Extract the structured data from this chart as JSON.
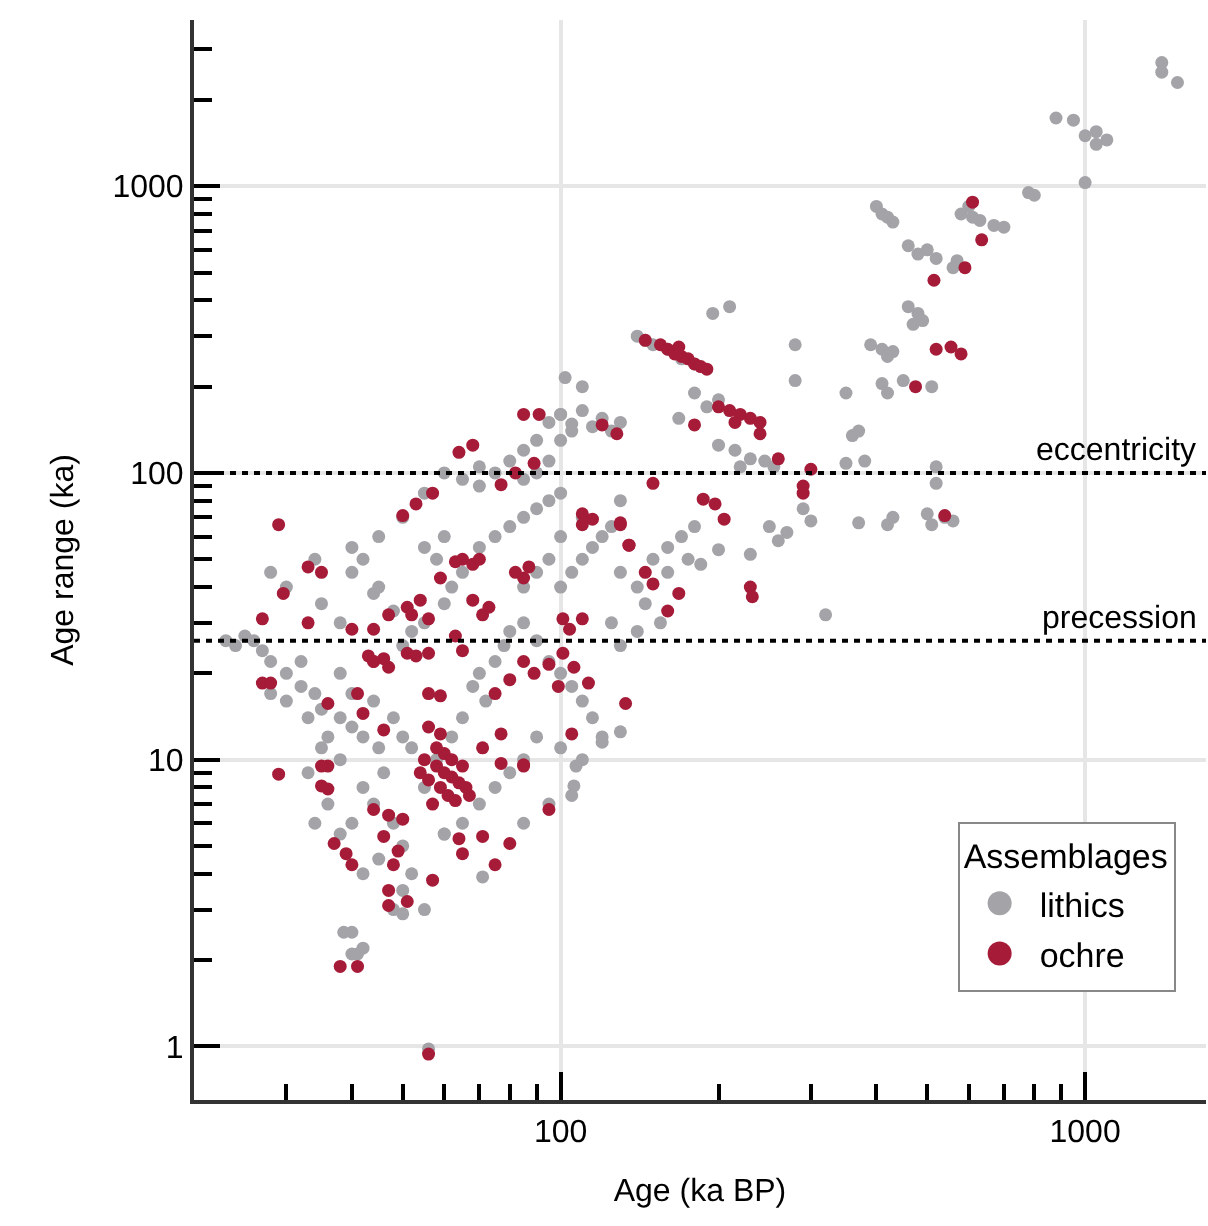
{
  "chart_data": {
    "type": "scatter",
    "xlabel": "Age (ka BP)",
    "ylabel": "Age range (ka)",
    "log": "xy",
    "grid": true,
    "marker": "circle",
    "legend": "bottom right",
    "legend_title": "Assemblages",
    "xlim": [
      20,
      1700
    ],
    "ylim": [
      0.65,
      3800
    ],
    "xticks": [
      {
        "value": 30,
        "label": null
      },
      {
        "value": 40,
        "label": null
      },
      {
        "value": 50,
        "label": null
      },
      {
        "value": 60,
        "label": null
      },
      {
        "value": 70,
        "label": null
      },
      {
        "value": 80,
        "label": null
      },
      {
        "value": 90,
        "label": null
      },
      100,
      {
        "value": 200,
        "label": null
      },
      {
        "value": 300,
        "label": null
      },
      {
        "value": 400,
        "label": null
      },
      {
        "value": 500,
        "label": null
      },
      {
        "value": 600,
        "label": null
      },
      {
        "value": 700,
        "label": null
      },
      {
        "value": 800,
        "label": null
      },
      {
        "value": 900,
        "label": null
      },
      1000
    ],
    "yticks": [
      1,
      {
        "value": 2,
        "label": null
      },
      {
        "value": 3,
        "label": null
      },
      {
        "value": 4,
        "label": null
      },
      {
        "value": 5,
        "label": null
      },
      {
        "value": 6,
        "label": null
      },
      {
        "value": 7,
        "label": null
      },
      {
        "value": 8,
        "label": null
      },
      {
        "value": 9,
        "label": null
      },
      10,
      {
        "value": 20,
        "label": null
      },
      {
        "value": 30,
        "label": null
      },
      {
        "value": 40,
        "label": null
      },
      {
        "value": 50,
        "label": null
      },
      {
        "value": 60,
        "label": null
      },
      {
        "value": 70,
        "label": null
      },
      {
        "value": 80,
        "label": null
      },
      {
        "value": 90,
        "label": null
      },
      100,
      {
        "value": 200,
        "label": null
      },
      {
        "value": 300,
        "label": null
      },
      {
        "value": 400,
        "label": null
      },
      {
        "value": 500,
        "label": null
      },
      {
        "value": 600,
        "label": null
      },
      {
        "value": 700,
        "label": null
      },
      {
        "value": 800,
        "label": null
      },
      {
        "value": 900,
        "label": null
      },
      1000,
      {
        "value": 2000,
        "label": null
      },
      {
        "value": 3000,
        "label": null
      }
    ],
    "ref_lines": [
      {
        "axis": "y",
        "value": 100,
        "label": "eccentricity",
        "line_style": "dotted",
        "color": "#000000"
      },
      {
        "axis": "y",
        "value": 26,
        "label": "precession",
        "line_style": "dotted",
        "color": "#000000"
      }
    ],
    "series": [
      {
        "name": "lithics",
        "color": "#a3a3a8",
        "x": [
          1400,
          1400,
          1500,
          880,
          950,
          1050,
          1000,
          1100,
          1050,
          1000,
          780,
          800,
          400,
          410,
          420,
          430,
          580,
          610,
          630,
          600,
          670,
          700,
          460,
          500,
          480,
          520,
          570,
          560,
          460,
          480,
          490,
          470,
          390,
          410,
          430,
          420,
          410,
          420,
          450,
          510,
          280,
          195,
          210,
          280,
          350,
          360,
          370,
          380,
          350,
          520,
          520,
          500,
          540,
          560,
          510,
          430,
          420,
          370,
          250,
          270,
          260,
          320,
          230,
          200,
          290,
          300,
          200,
          215,
          230,
          245,
          255,
          220,
          180,
          200,
          190,
          140,
          145,
          150,
          160,
          170,
          180,
          168,
          100,
          110,
          120,
          130,
          105,
          115,
          125,
          102,
          110,
          23,
          24,
          25,
          26,
          27,
          28,
          30,
          32,
          34,
          30,
          35,
          38,
          40,
          42,
          45,
          36,
          33,
          28,
          32,
          38,
          40,
          44,
          48,
          50,
          52,
          46,
          42,
          44,
          40,
          48,
          50,
          52,
          55,
          50,
          45,
          40,
          42,
          60,
          55,
          58,
          62,
          65,
          68,
          70,
          72,
          75,
          78,
          80,
          85,
          90,
          95,
          100,
          105,
          110,
          115,
          120,
          100,
          90,
          85,
          80,
          75,
          70,
          65,
          60,
          85,
          95,
          110,
          120,
          130,
          50,
          55,
          60,
          62,
          65,
          58,
          55,
          60,
          70,
          75,
          80,
          85,
          90,
          95,
          100,
          70,
          65,
          60,
          55,
          50,
          45,
          42,
          40,
          44,
          48,
          52,
          38,
          35,
          30,
          28,
          34,
          40,
          45,
          100,
          105,
          110,
          115,
          120,
          125,
          130,
          110,
          100,
          95,
          90,
          85,
          130,
          140,
          150,
          160,
          170,
          180,
          145,
          155,
          140,
          130,
          125,
          160,
          175,
          185,
          80,
          85,
          90,
          95,
          100,
          75,
          70,
          85,
          95,
          100,
          105,
          90,
          38.6,
          40,
          41,
          48,
          50,
          71,
          106,
          105,
          107,
          56,
          33,
          35,
          38,
          36,
          38,
          42,
          34
        ],
        "values": [
          2700,
          2500,
          2300,
          1730,
          1700,
          1550,
          1500,
          1450,
          1400,
          1030,
          950,
          930,
          850,
          800,
          780,
          750,
          800,
          780,
          760,
          850,
          730,
          720,
          620,
          600,
          580,
          560,
          550,
          520,
          380,
          360,
          340,
          330,
          280,
          270,
          265,
          255,
          205,
          190,
          210,
          200,
          280,
          360,
          380,
          210,
          190,
          135,
          140,
          110,
          108,
          105,
          92,
          72,
          70,
          68,
          66,
          70,
          66,
          67,
          65,
          62,
          58,
          32,
          52,
          54,
          75,
          68,
          125,
          120,
          112,
          110,
          105,
          105,
          190,
          180,
          170,
          300,
          290,
          280,
          270,
          250,
          240,
          155,
          160,
          165,
          155,
          150,
          148,
          145,
          140,
          215,
          200,
          26,
          25,
          27,
          26,
          24,
          22,
          20,
          18,
          17,
          16,
          15,
          14,
          13,
          12,
          11,
          12,
          14,
          17,
          22,
          20,
          17,
          16,
          14,
          12,
          11,
          9,
          8,
          7,
          6,
          6,
          5,
          4,
          3,
          3.5,
          4.5,
          2.5,
          2.2,
          5.5,
          8,
          10,
          12,
          14,
          18,
          20,
          16,
          22,
          25,
          28,
          30,
          26,
          22,
          20,
          18,
          16,
          14,
          12,
          11,
          12,
          10,
          9,
          8,
          7,
          6,
          5.5,
          6,
          7,
          10,
          11.5,
          12.5,
          25,
          30,
          35,
          40,
          45,
          50,
          55,
          60,
          55,
          60,
          65,
          70,
          75,
          80,
          85,
          90,
          95,
          100,
          85,
          70,
          60,
          50,
          45,
          38,
          33,
          28,
          30,
          35,
          40,
          45,
          50,
          55,
          40,
          40,
          45,
          50,
          55,
          60,
          65,
          80,
          70,
          60,
          50,
          45,
          40,
          45,
          40,
          50,
          55,
          60,
          65,
          35,
          30,
          28,
          25,
          30,
          45,
          50,
          48,
          110,
          120,
          130,
          150,
          160,
          100,
          105,
          95,
          110,
          130,
          140,
          100,
          2.5,
          2.1,
          2.1,
          3,
          2.9,
          3.9,
          8.1,
          7.5,
          9.5,
          0.98,
          9,
          11,
          10,
          7,
          5.5,
          4,
          6
        ]
      },
      {
        "name": "ochre",
        "color": "#a51b38",
        "x": [
          610,
          635,
          590,
          515,
          520,
          555,
          580,
          475,
          540,
          145,
          155,
          160,
          165,
          170,
          175,
          180,
          185,
          190,
          168,
          200,
          210,
          220,
          230,
          240,
          215,
          240,
          260,
          300,
          290,
          290,
          180,
          150,
          187,
          197,
          205,
          230,
          232,
          120,
          128,
          130,
          135,
          110,
          110,
          145,
          150,
          160,
          168,
          85,
          91,
          89,
          29,
          33,
          35,
          29.6,
          27,
          33,
          40,
          44,
          44,
          47,
          27,
          28,
          53,
          50,
          57,
          64,
          68,
          77,
          82,
          65,
          68,
          70,
          63,
          82,
          85,
          87,
          51,
          52,
          54,
          56,
          59,
          68,
          71,
          73,
          47,
          43,
          44,
          46,
          51,
          53,
          56,
          63,
          65,
          101,
          104,
          110,
          85,
          89,
          95,
          101,
          106,
          99,
          113,
          80,
          75,
          56,
          59,
          41,
          42,
          36,
          46,
          56,
          59,
          71,
          77,
          85,
          105,
          133,
          115,
          130,
          135,
          29,
          36,
          35,
          55,
          58,
          60,
          62,
          64,
          66,
          56,
          59,
          61,
          63,
          57,
          65,
          60,
          62,
          67,
          54,
          58,
          35,
          36,
          37,
          39,
          40,
          44,
          47,
          50,
          46,
          49,
          48,
          47,
          47,
          51,
          57,
          64,
          65,
          71,
          75,
          80,
          85,
          77,
          95,
          38,
          41,
          56
        ],
        "values": [
          880,
          650,
          520,
          470,
          270,
          275,
          260,
          200,
          71,
          290,
          280,
          270,
          260,
          255,
          250,
          240,
          235,
          230,
          275,
          170,
          165,
          160,
          155,
          150,
          150,
          137,
          112,
          103,
          90,
          85,
          147,
          92,
          81,
          78,
          69,
          40,
          37,
          147,
          137,
          67,
          56,
          72,
          66,
          45,
          41,
          33,
          38,
          160,
          160,
          108,
          66,
          47,
          45,
          38,
          31,
          30,
          28.5,
          28.5,
          22,
          21,
          18.5,
          18.5,
          78,
          71,
          85,
          118,
          125,
          91,
          100,
          50,
          48,
          50,
          49,
          45,
          43,
          47,
          34,
          32,
          36,
          31,
          43,
          36,
          32,
          34,
          32,
          23,
          22,
          22.5,
          23.5,
          23,
          23.5,
          27,
          24,
          31,
          28.5,
          31,
          22,
          20,
          21.5,
          23.5,
          21,
          18,
          18.5,
          19,
          17,
          17,
          16.7,
          17,
          14.5,
          15.7,
          12.7,
          13,
          12.3,
          11,
          12.3,
          9.6,
          12.3,
          15.7,
          69,
          66,
          56,
          8.9,
          9.5,
          8.1,
          10,
          9.5,
          9,
          8.7,
          8.3,
          8,
          8.5,
          8,
          7.5,
          7.2,
          7,
          9.5,
          10.5,
          10,
          7.5,
          9,
          11,
          9.5,
          7.9,
          5.1,
          4.7,
          4.3,
          6.7,
          6.4,
          6.2,
          5.4,
          4.8,
          4.3,
          3.5,
          3.1,
          3.2,
          3.8,
          5.3,
          4.7,
          5.4,
          4.3,
          5.1,
          9.5,
          9.7,
          6.7,
          1.9,
          1.9,
          0.94
        ]
      }
    ]
  }
}
